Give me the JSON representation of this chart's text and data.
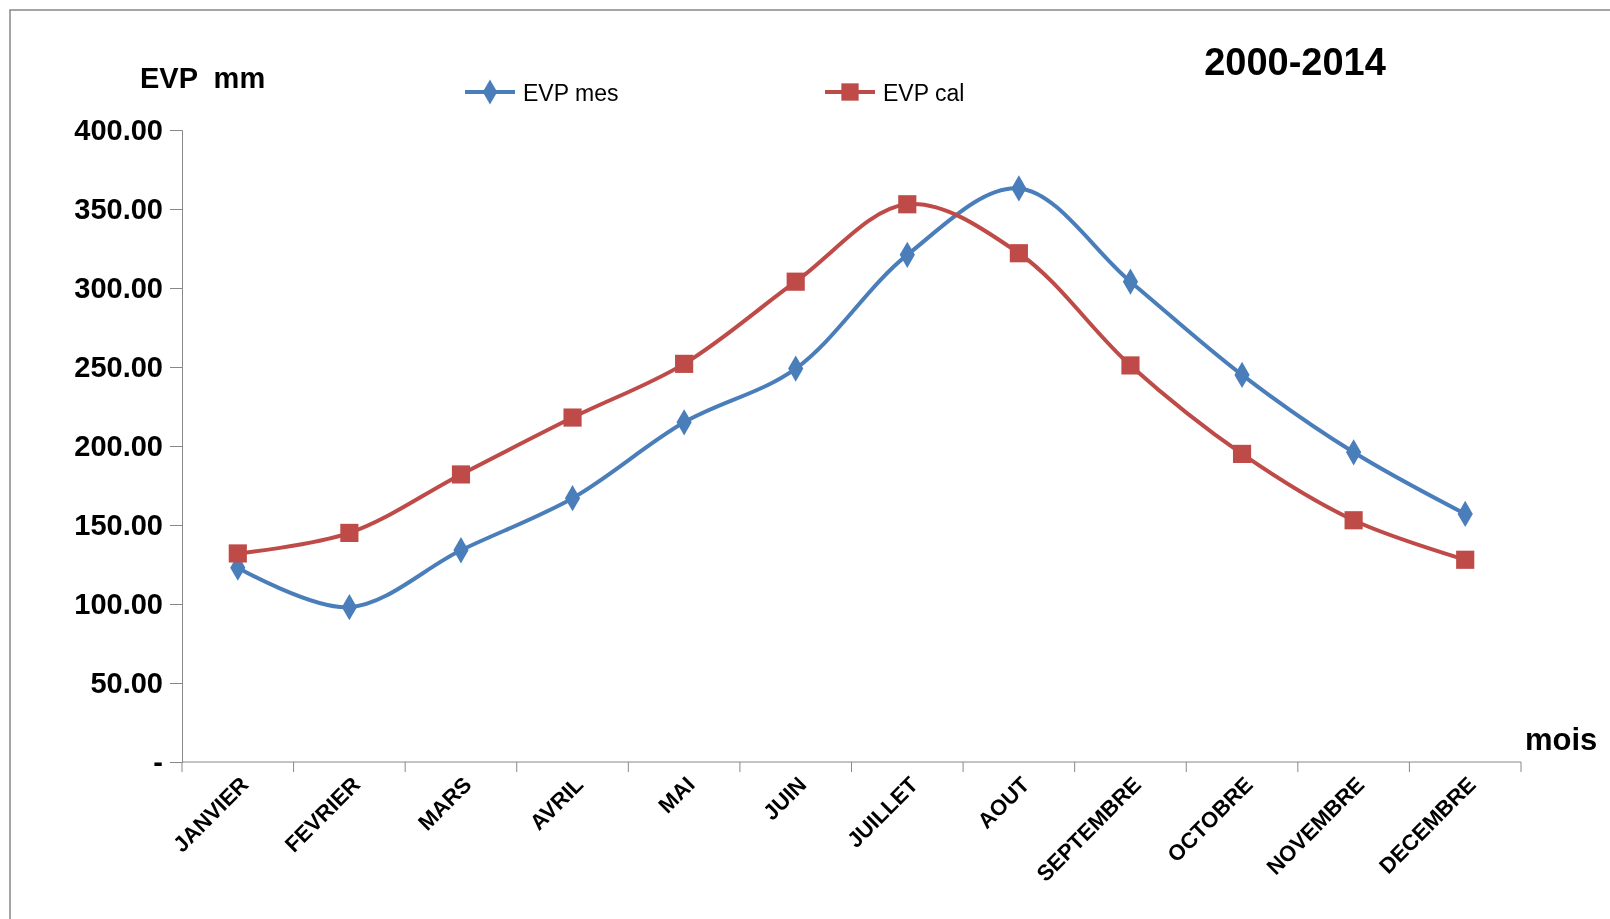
{
  "chart_data": {
    "type": "line",
    "title": "2000-2014",
    "ylabel": "EVP  mm",
    "xlabel": "mois",
    "categories": [
      "JANVIER",
      "FEVRIER",
      "MARS",
      "AVRIL",
      "MAI",
      "JUIN",
      "JUILLET",
      "AOUT",
      "SEPTEMBRE",
      "OCTOBRE",
      "NOVEMBRE",
      "DECEMBRE"
    ],
    "series": [
      {
        "name": "EVP mes",
        "color": "#4a7ebb",
        "marker": "diamond",
        "values": [
          123,
          98,
          134,
          167,
          215,
          249,
          321,
          363,
          304,
          245,
          196,
          157
        ]
      },
      {
        "name": "EVP cal",
        "color": "#be4b48",
        "marker": "square",
        "values": [
          132,
          145,
          182,
          218,
          252,
          304,
          353,
          322,
          251,
          195,
          153,
          128
        ]
      }
    ],
    "ylim": [
      0,
      400
    ],
    "yticks": [
      {
        "value": 0,
        "label": "-"
      },
      {
        "value": 50,
        "label": "50.00"
      },
      {
        "value": 100,
        "label": "100.00"
      },
      {
        "value": 150,
        "label": "150.00"
      },
      {
        "value": 200,
        "label": "200.00"
      },
      {
        "value": 250,
        "label": "250.00"
      },
      {
        "value": 300,
        "label": "300.00"
      },
      {
        "value": 350,
        "label": "350.00"
      },
      {
        "value": 400,
        "label": "400.00"
      }
    ],
    "grid": false,
    "legend": "top"
  }
}
